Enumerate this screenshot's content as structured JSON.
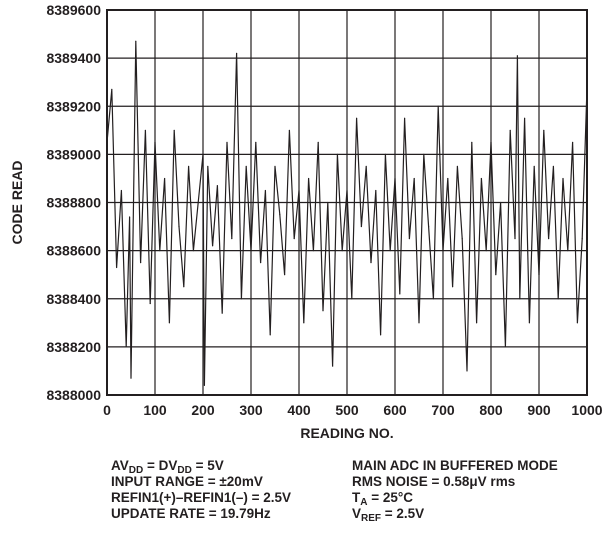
{
  "chart_data": {
    "type": "line",
    "xlabel": "READING NO.",
    "ylabel": "CODE READ",
    "xlim": [
      0,
      1000
    ],
    "ylim": [
      8388000,
      8389600
    ],
    "x_ticks": [
      "0",
      "100",
      "200",
      "300",
      "400",
      "500",
      "600",
      "700",
      "800",
      "900",
      "1000"
    ],
    "y_ticks": [
      "8389600",
      "8389400",
      "8389200",
      "8389000",
      "8388800",
      "8388600",
      "8388400",
      "8388200",
      "8388000"
    ],
    "grid": true,
    "series_color": "#231f20",
    "series": [
      {
        "x": [
          0,
          10,
          20,
          30,
          40,
          47,
          50,
          60,
          70,
          80,
          90,
          100,
          110,
          120,
          130,
          140,
          150,
          160,
          170,
          180,
          190,
          200,
          203,
          210,
          220,
          230,
          240,
          250,
          260,
          270,
          280,
          290,
          300,
          310,
          320,
          330,
          340,
          350,
          360,
          370,
          380,
          390,
          400,
          410,
          420,
          430,
          440,
          450,
          460,
          470,
          480,
          490,
          500,
          510,
          520,
          530,
          540,
          550,
          560,
          570,
          580,
          590,
          600,
          610,
          620,
          630,
          640,
          650,
          660,
          670,
          680,
          690,
          700,
          710,
          720,
          730,
          740,
          750,
          760,
          770,
          780,
          790,
          800,
          810,
          820,
          830,
          840,
          850,
          855,
          860,
          870,
          880,
          890,
          900,
          910,
          920,
          930,
          940,
          950,
          960,
          970,
          980,
          990,
          1000
        ],
        "y": [
          8389050,
          8389270,
          8388530,
          8388850,
          8388200,
          8388740,
          8388070,
          8389470,
          8388550,
          8389100,
          8388380,
          8389050,
          8388600,
          8388900,
          8388300,
          8389100,
          8388700,
          8388450,
          8388950,
          8388600,
          8388800,
          8389000,
          8388040,
          8388950,
          8388620,
          8388870,
          8388340,
          8389050,
          8388650,
          8389420,
          8388400,
          8388950,
          8388600,
          8389050,
          8388550,
          8388850,
          8388250,
          8388950,
          8388750,
          8388500,
          8389100,
          8388650,
          8388850,
          8388300,
          8388900,
          8388600,
          8389050,
          8388350,
          8388800,
          8388120,
          8389000,
          8388600,
          8388850,
          8388400,
          8389150,
          8388700,
          8388950,
          8388550,
          8388850,
          8388250,
          8389000,
          8388600,
          8388900,
          8388420,
          8389150,
          8388650,
          8388900,
          8388300,
          8389000,
          8388700,
          8388400,
          8389200,
          8388600,
          8388900,
          8388450,
          8388950,
          8388650,
          8388100,
          8389050,
          8388300,
          8388900,
          8388600,
          8389050,
          8388500,
          8388800,
          8388200,
          8389100,
          8388650,
          8389410,
          8388400,
          8389150,
          8388300,
          8388950,
          8388500,
          8389100,
          8388650,
          8388950,
          8388400,
          8388900,
          8388600,
          8389050,
          8388300,
          8388650,
          8389280
        ]
      }
    ]
  },
  "notes": {
    "left": [
      [
        "AV",
        "DD",
        " = DV",
        "DD",
        " = 5V"
      ],
      [
        "INPUT RANGE = ±20mV"
      ],
      [
        "REFIN1(+)–REFIN1(–) = 2.5V"
      ],
      [
        "UPDATE RATE = 19.79Hz"
      ]
    ],
    "right": [
      [
        "MAIN ADC IN BUFFERED MODE"
      ],
      [
        "RMS NOISE = 0.58μV rms"
      ],
      [
        "T",
        "A",
        " = 25°C"
      ],
      [
        "V",
        "REF",
        " = 2.5V"
      ]
    ]
  }
}
